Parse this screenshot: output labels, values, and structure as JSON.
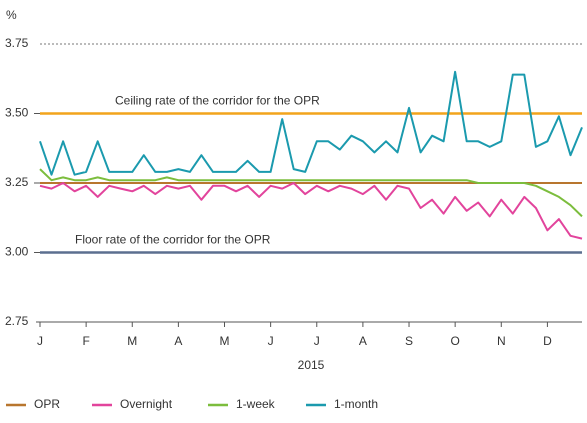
{
  "chart_data": {
    "type": "line",
    "y_unit_label": "%",
    "x_label": "2015",
    "categories": [
      "J",
      null,
      null,
      null,
      "F",
      null,
      null,
      null,
      "M",
      null,
      null,
      null,
      "A",
      null,
      null,
      null,
      "M",
      null,
      null,
      null,
      "J",
      null,
      null,
      null,
      "J",
      null,
      null,
      null,
      "A",
      null,
      null,
      null,
      "S",
      null,
      null,
      null,
      "O",
      null,
      null,
      null,
      "N",
      null,
      null,
      null,
      "D",
      null,
      null,
      null
    ],
    "ylim": [
      2.75,
      3.75
    ],
    "yticks": [
      {
        "value": 2.75,
        "label": "2.75"
      },
      {
        "value": 3.0,
        "label": "3.00"
      },
      {
        "value": 3.25,
        "label": "3.25"
      },
      {
        "value": 3.5,
        "label": "3.50"
      },
      {
        "value": 3.75,
        "label": "3.75"
      }
    ],
    "reference_lines": [
      {
        "label": "Ceiling rate of the corridor for the OPR",
        "value": 3.5,
        "color": "#f2a41c"
      },
      {
        "label": "Floor rate of the corridor for the OPR",
        "value": 3.0,
        "color": "#5b6f8f"
      }
    ],
    "series": [
      {
        "name": "OPR",
        "color": "#b8762e",
        "values": [
          3.25,
          3.25,
          3.25,
          3.25,
          3.25,
          3.25,
          3.25,
          3.25,
          3.25,
          3.25,
          3.25,
          3.25,
          3.25,
          3.25,
          3.25,
          3.25,
          3.25,
          3.25,
          3.25,
          3.25,
          3.25,
          3.25,
          3.25,
          3.25,
          3.25,
          3.25,
          3.25,
          3.25,
          3.25,
          3.25,
          3.25,
          3.25,
          3.25,
          3.25,
          3.25,
          3.25,
          3.25,
          3.25,
          3.25,
          3.25,
          3.25,
          3.25,
          3.25,
          3.25,
          3.25,
          3.25,
          3.25,
          3.25
        ]
      },
      {
        "name": "Overnight",
        "color": "#e2449c",
        "values": [
          3.24,
          3.23,
          3.25,
          3.22,
          3.24,
          3.2,
          3.24,
          3.23,
          3.22,
          3.24,
          3.21,
          3.24,
          3.23,
          3.24,
          3.19,
          3.24,
          3.24,
          3.22,
          3.24,
          3.2,
          3.24,
          3.23,
          3.25,
          3.21,
          3.24,
          3.22,
          3.24,
          3.23,
          3.21,
          3.24,
          3.19,
          3.24,
          3.23,
          3.16,
          3.19,
          3.14,
          3.2,
          3.15,
          3.18,
          3.13,
          3.19,
          3.14,
          3.2,
          3.16,
          3.08,
          3.12,
          3.06,
          3.05
        ]
      },
      {
        "name": "1-week",
        "color": "#7cbd3d",
        "values": [
          3.3,
          3.26,
          3.27,
          3.26,
          3.26,
          3.27,
          3.26,
          3.26,
          3.26,
          3.26,
          3.26,
          3.27,
          3.26,
          3.26,
          3.26,
          3.26,
          3.26,
          3.26,
          3.26,
          3.26,
          3.26,
          3.26,
          3.26,
          3.26,
          3.26,
          3.26,
          3.26,
          3.26,
          3.26,
          3.26,
          3.26,
          3.26,
          3.26,
          3.26,
          3.26,
          3.26,
          3.26,
          3.26,
          3.25,
          3.25,
          3.25,
          3.25,
          3.25,
          3.24,
          3.22,
          3.2,
          3.17,
          3.13
        ]
      },
      {
        "name": "1-month",
        "color": "#1b9aae",
        "values": [
          3.4,
          3.28,
          3.4,
          3.28,
          3.29,
          3.4,
          3.29,
          3.29,
          3.29,
          3.35,
          3.29,
          3.29,
          3.3,
          3.29,
          3.35,
          3.29,
          3.29,
          3.29,
          3.33,
          3.29,
          3.29,
          3.48,
          3.3,
          3.29,
          3.4,
          3.4,
          3.37,
          3.42,
          3.4,
          3.36,
          3.4,
          3.36,
          3.52,
          3.36,
          3.42,
          3.4,
          3.65,
          3.4,
          3.4,
          3.38,
          3.4,
          3.64,
          3.64,
          3.38,
          3.4,
          3.49,
          3.35,
          3.45
        ]
      }
    ]
  }
}
